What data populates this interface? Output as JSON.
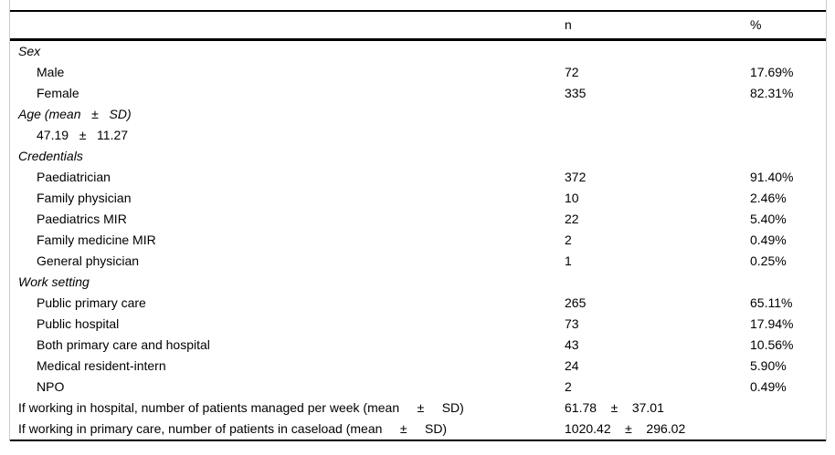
{
  "table": {
    "header": {
      "n_label": "n",
      "pct_label": "%"
    },
    "rows": [
      {
        "style": "section",
        "label": "Sex",
        "n": "",
        "pct": ""
      },
      {
        "style": "item",
        "label": "Male",
        "n": "72",
        "pct": "17.69%"
      },
      {
        "style": "item",
        "label": "Female",
        "n": "335",
        "pct": "82.31%"
      },
      {
        "style": "section",
        "label": "Age (mean   ±   SD)",
        "n": "",
        "pct": ""
      },
      {
        "style": "item",
        "label": "47.19   ±   11.27",
        "n": "",
        "pct": ""
      },
      {
        "style": "section",
        "label": "Credentials",
        "n": "",
        "pct": ""
      },
      {
        "style": "item",
        "label": "Paediatrician",
        "n": "372",
        "pct": "91.40%"
      },
      {
        "style": "item",
        "label": "Family physician",
        "n": "10",
        "pct": "2.46%"
      },
      {
        "style": "item",
        "label": "Paediatrics MIR",
        "n": "22",
        "pct": "5.40%"
      },
      {
        "style": "item",
        "label": "Family medicine MIR",
        "n": "2",
        "pct": "0.49%"
      },
      {
        "style": "item",
        "label": "General physician",
        "n": "1",
        "pct": "0.25%"
      },
      {
        "style": "section",
        "label": "Work setting",
        "n": "",
        "pct": ""
      },
      {
        "style": "item",
        "label": "Public primary care",
        "n": "265",
        "pct": "65.11%"
      },
      {
        "style": "item",
        "label": "Public hospital",
        "n": "73",
        "pct": "17.94%"
      },
      {
        "style": "item",
        "label": "Both primary care and hospital",
        "n": "43",
        "pct": "10.56%"
      },
      {
        "style": "item",
        "label": "Medical resident-intern",
        "n": "24",
        "pct": "5.90%"
      },
      {
        "style": "item",
        "label": "NPO",
        "n": "2",
        "pct": "0.49%"
      },
      {
        "style": "flush",
        "label": "If working in hospital, number of patients managed per week (mean     ±     SD)",
        "n": "61.78    ±    37.01",
        "pct": ""
      },
      {
        "style": "flush",
        "label": "If working in primary care, number of patients in caseload (mean     ±     SD)",
        "n": "1020.42    ±    296.02",
        "pct": ""
      }
    ]
  },
  "colors": {
    "rule": "#000000",
    "cell_guide": "#cccccc",
    "text": "#000000",
    "background": "#ffffff"
  }
}
